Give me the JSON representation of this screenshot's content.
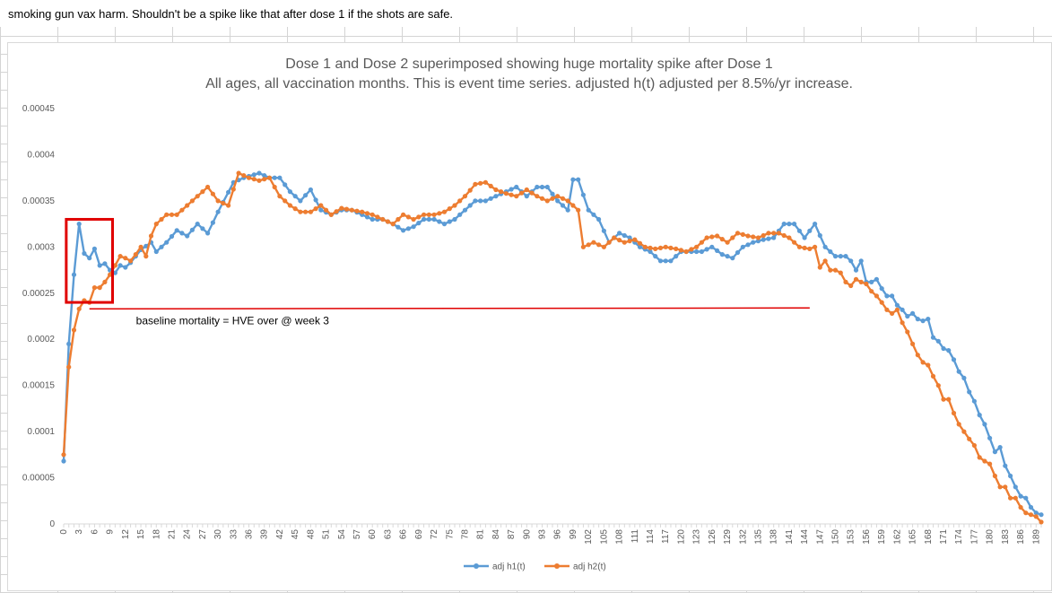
{
  "note": "smoking gun vax harm. Shouldn't be a spike like that after dose 1 if the shots are safe.",
  "chart_data": {
    "type": "line",
    "title": "Dose 1 and Dose 2 superimposed showing huge mortality spike after Dose 1",
    "subtitle": "All ages, all vaccination months. This is event time series. adjusted h(t) adjusted per 8.5%/yr increase.",
    "xlabel": "",
    "ylabel": "",
    "x_start": 0,
    "x_end": 190,
    "x_tick_step": 3,
    "ylim": [
      0,
      0.00045
    ],
    "y_ticks": [
      "0",
      "0.00005",
      "0.0001",
      "0.00015",
      "0.0002",
      "0.00025",
      "0.0003",
      "0.00035",
      "0.0004",
      "0.00045"
    ],
    "grid": false,
    "legend_position": "bottom",
    "series": [
      {
        "name": "adj h1(t)",
        "color": "#5b9bd5",
        "anchors": [
          [
            0,
            6.8e-05
          ],
          [
            1,
            0.000195
          ],
          [
            2,
            0.00027
          ],
          [
            3,
            0.000325
          ],
          [
            4,
            0.000293
          ],
          [
            5,
            0.000288
          ],
          [
            6,
            0.000298
          ],
          [
            7,
            0.00028
          ],
          [
            8,
            0.000282
          ],
          [
            9,
            0.000275
          ],
          [
            10,
            0.000272
          ],
          [
            11,
            0.00028
          ],
          [
            12,
            0.000278
          ],
          [
            13,
            0.000283
          ],
          [
            15,
            0.000297
          ],
          [
            17,
            0.000305
          ],
          [
            18,
            0.000295
          ],
          [
            20,
            0.000305
          ],
          [
            22,
            0.000318
          ],
          [
            24,
            0.000312
          ],
          [
            26,
            0.000325
          ],
          [
            28,
            0.000315
          ],
          [
            30,
            0.000338
          ],
          [
            33,
            0.00037
          ],
          [
            35,
            0.000375
          ],
          [
            38,
            0.00038
          ],
          [
            40,
            0.000375
          ],
          [
            42,
            0.000375
          ],
          [
            44,
            0.00036
          ],
          [
            46,
            0.00035
          ],
          [
            48,
            0.000362
          ],
          [
            50,
            0.00034
          ],
          [
            52,
            0.000335
          ],
          [
            54,
            0.00034
          ],
          [
            56,
            0.00034
          ],
          [
            58,
            0.000335
          ],
          [
            60,
            0.00033
          ],
          [
            62,
            0.00033
          ],
          [
            64,
            0.000325
          ],
          [
            66,
            0.000318
          ],
          [
            68,
            0.000322
          ],
          [
            70,
            0.00033
          ],
          [
            72,
            0.00033
          ],
          [
            74,
            0.000325
          ],
          [
            76,
            0.00033
          ],
          [
            78,
            0.00034
          ],
          [
            80,
            0.00035
          ],
          [
            82,
            0.00035
          ],
          [
            84,
            0.000355
          ],
          [
            86,
            0.00036
          ],
          [
            88,
            0.000365
          ],
          [
            90,
            0.000355
          ],
          [
            92,
            0.000365
          ],
          [
            94,
            0.000365
          ],
          [
            96,
            0.00035
          ],
          [
            98,
            0.00034
          ],
          [
            99,
            0.000373
          ],
          [
            100,
            0.000373
          ],
          [
            102,
            0.00034
          ],
          [
            104,
            0.00033
          ],
          [
            106,
            0.000305
          ],
          [
            108,
            0.000315
          ],
          [
            110,
            0.00031
          ],
          [
            112,
            0.0003
          ],
          [
            114,
            0.000295
          ],
          [
            116,
            0.000285
          ],
          [
            118,
            0.000285
          ],
          [
            120,
            0.000295
          ],
          [
            122,
            0.000295
          ],
          [
            124,
            0.000295
          ],
          [
            126,
            0.0003
          ],
          [
            128,
            0.000292
          ],
          [
            130,
            0.000288
          ],
          [
            132,
            0.0003
          ],
          [
            134,
            0.000305
          ],
          [
            136,
            0.000308
          ],
          [
            138,
            0.00031
          ],
          [
            140,
            0.000325
          ],
          [
            142,
            0.000325
          ],
          [
            144,
            0.00031
          ],
          [
            146,
            0.000325
          ],
          [
            148,
            0.0003
          ],
          [
            150,
            0.00029
          ],
          [
            152,
            0.00029
          ],
          [
            153,
            0.000285
          ],
          [
            154,
            0.000275
          ],
          [
            155,
            0.000285
          ],
          [
            156,
            0.000262
          ],
          [
            157,
            0.000262
          ],
          [
            158,
            0.000265
          ],
          [
            159,
            0.000255
          ],
          [
            160,
            0.000247
          ],
          [
            161,
            0.000247
          ],
          [
            162,
            0.000237
          ],
          [
            163,
            0.000232
          ],
          [
            164,
            0.000225
          ],
          [
            165,
            0.000228
          ],
          [
            166,
            0.000222
          ],
          [
            167,
            0.00022
          ],
          [
            168,
            0.000222
          ],
          [
            169,
            0.000202
          ],
          [
            170,
            0.000198
          ],
          [
            171,
            0.00019
          ],
          [
            172,
            0.000188
          ],
          [
            173,
            0.000178
          ],
          [
            174,
            0.000165
          ],
          [
            175,
            0.000158
          ],
          [
            176,
            0.000143
          ],
          [
            177,
            0.000133
          ],
          [
            178,
            0.000118
          ],
          [
            179,
            0.000108
          ],
          [
            180,
            9.3e-05
          ],
          [
            181,
            7.8e-05
          ],
          [
            182,
            8.3e-05
          ],
          [
            183,
            6.3e-05
          ],
          [
            184,
            5.2e-05
          ],
          [
            185,
            4e-05
          ],
          [
            186,
            3e-05
          ],
          [
            187,
            2.8e-05
          ],
          [
            188,
            1.8e-05
          ],
          [
            189,
            1.2e-05
          ],
          [
            190,
            1e-05
          ]
        ]
      },
      {
        "name": "adj h2(t)",
        "color": "#ed7d31",
        "anchors": [
          [
            0,
            7.5e-05
          ],
          [
            1,
            0.00017
          ],
          [
            2,
            0.00021
          ],
          [
            3,
            0.000233
          ],
          [
            4,
            0.000242
          ],
          [
            5,
            0.00024
          ],
          [
            6,
            0.000256
          ],
          [
            7,
            0.000256
          ],
          [
            8,
            0.000262
          ],
          [
            9,
            0.00027
          ],
          [
            10,
            0.00028
          ],
          [
            11,
            0.00029
          ],
          [
            12,
            0.000288
          ],
          [
            13,
            0.000285
          ],
          [
            14,
            0.000292
          ],
          [
            15,
            0.0003
          ],
          [
            16,
            0.00029
          ],
          [
            17,
            0.000312
          ],
          [
            18,
            0.000325
          ],
          [
            20,
            0.000335
          ],
          [
            22,
            0.000335
          ],
          [
            24,
            0.000345
          ],
          [
            26,
            0.000355
          ],
          [
            28,
            0.000365
          ],
          [
            30,
            0.00035
          ],
          [
            32,
            0.000345
          ],
          [
            34,
            0.00038
          ],
          [
            36,
            0.000375
          ],
          [
            38,
            0.000372
          ],
          [
            40,
            0.000375
          ],
          [
            42,
            0.000355
          ],
          [
            44,
            0.000345
          ],
          [
            46,
            0.000338
          ],
          [
            48,
            0.000338
          ],
          [
            50,
            0.000345
          ],
          [
            52,
            0.000335
          ],
          [
            54,
            0.000342
          ],
          [
            56,
            0.00034
          ],
          [
            58,
            0.000338
          ],
          [
            60,
            0.000335
          ],
          [
            62,
            0.00033
          ],
          [
            64,
            0.000325
          ],
          [
            66,
            0.000335
          ],
          [
            68,
            0.00033
          ],
          [
            70,
            0.000335
          ],
          [
            72,
            0.000335
          ],
          [
            74,
            0.000338
          ],
          [
            76,
            0.000345
          ],
          [
            78,
            0.000355
          ],
          [
            80,
            0.000368
          ],
          [
            82,
            0.00037
          ],
          [
            84,
            0.000362
          ],
          [
            86,
            0.000358
          ],
          [
            88,
            0.000355
          ],
          [
            90,
            0.000362
          ],
          [
            92,
            0.000355
          ],
          [
            94,
            0.00035
          ],
          [
            96,
            0.000355
          ],
          [
            98,
            0.00035
          ],
          [
            100,
            0.00034
          ],
          [
            101,
            0.0003
          ],
          [
            103,
            0.000305
          ],
          [
            105,
            0.0003
          ],
          [
            107,
            0.00031
          ],
          [
            109,
            0.000305
          ],
          [
            111,
            0.000308
          ],
          [
            113,
            0.0003
          ],
          [
            115,
            0.000298
          ],
          [
            117,
            0.0003
          ],
          [
            119,
            0.000298
          ],
          [
            121,
            0.000295
          ],
          [
            123,
            0.0003
          ],
          [
            125,
            0.00031
          ],
          [
            127,
            0.000312
          ],
          [
            129,
            0.000305
          ],
          [
            131,
            0.000315
          ],
          [
            133,
            0.000312
          ],
          [
            135,
            0.00031
          ],
          [
            137,
            0.000315
          ],
          [
            139,
            0.000315
          ],
          [
            141,
            0.00031
          ],
          [
            143,
            0.0003
          ],
          [
            145,
            0.000298
          ],
          [
            146,
            0.0003
          ],
          [
            147,
            0.000278
          ],
          [
            148,
            0.000285
          ],
          [
            149,
            0.000275
          ],
          [
            150,
            0.000275
          ],
          [
            151,
            0.000272
          ],
          [
            152,
            0.000262
          ],
          [
            153,
            0.000258
          ],
          [
            154,
            0.000265
          ],
          [
            155,
            0.000262
          ],
          [
            156,
            0.00026
          ],
          [
            157,
            0.000252
          ],
          [
            158,
            0.000247
          ],
          [
            159,
            0.00024
          ],
          [
            160,
            0.000232
          ],
          [
            161,
            0.000228
          ],
          [
            162,
            0.000232
          ],
          [
            163,
            0.000218
          ],
          [
            164,
            0.000208
          ],
          [
            165,
            0.000195
          ],
          [
            166,
            0.000183
          ],
          [
            167,
            0.000175
          ],
          [
            168,
            0.000172
          ],
          [
            169,
            0.00016
          ],
          [
            170,
            0.00015
          ],
          [
            171,
            0.000135
          ],
          [
            172,
            0.000135
          ],
          [
            173,
            0.00012
          ],
          [
            174,
            0.000108
          ],
          [
            175,
            0.0001
          ],
          [
            176,
            9.2e-05
          ],
          [
            177,
            8.5e-05
          ],
          [
            178,
            7.2e-05
          ],
          [
            179,
            6.8e-05
          ],
          [
            180,
            6.5e-05
          ],
          [
            181,
            5.2e-05
          ],
          [
            182,
            4e-05
          ],
          [
            183,
            4e-05
          ],
          [
            184,
            2.8e-05
          ],
          [
            185,
            2.8e-05
          ],
          [
            186,
            1.8e-05
          ],
          [
            187,
            1.2e-05
          ],
          [
            188,
            1e-05
          ],
          [
            189,
            8e-06
          ],
          [
            190,
            2e-06
          ]
        ]
      }
    ],
    "annotations": [
      {
        "type": "box",
        "label": "",
        "color": "#e00000",
        "x_range": [
          0.5,
          9.5
        ],
        "y_range": [
          0.00024,
          0.00033
        ]
      },
      {
        "type": "hline",
        "label": "baseline mortality = HVE over @ week 3",
        "color": "#e00000",
        "x_range": [
          5,
          145
        ],
        "y": 0.000233
      }
    ]
  }
}
